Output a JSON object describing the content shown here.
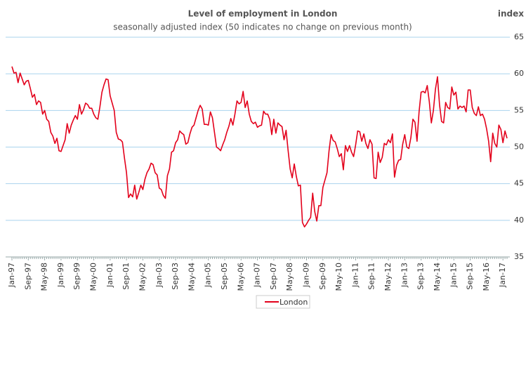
{
  "chart_data": {
    "type": "line",
    "title": "Level of employment in London",
    "subtitle": "seasonally adjusted index (50 indicates no change on previous month)",
    "y_axis_label": "index",
    "ylim": [
      35,
      65
    ],
    "yticks": [
      35,
      40,
      45,
      50,
      55,
      60,
      65
    ],
    "grid": true,
    "legend": "bottom",
    "categories": [
      "Jan-97",
      null,
      null,
      null,
      null,
      null,
      null,
      null,
      "Sep-97",
      null,
      null,
      null,
      null,
      null,
      null,
      null,
      "May-98",
      null,
      null,
      null,
      null,
      null,
      null,
      null,
      "Jan-99",
      null,
      null,
      null,
      null,
      null,
      null,
      null,
      "Sep-99",
      null,
      null,
      null,
      null,
      null,
      null,
      null,
      "May-00",
      null,
      null,
      null,
      null,
      null,
      null,
      null,
      "Jan-01",
      null,
      null,
      null,
      null,
      null,
      null,
      null,
      "Sep-01",
      null,
      null,
      null,
      null,
      null,
      null,
      null,
      "May-02",
      null,
      null,
      null,
      null,
      null,
      null,
      null,
      "Jan-03",
      null,
      null,
      null,
      null,
      null,
      null,
      null,
      "Sep-03",
      null,
      null,
      null,
      null,
      null,
      null,
      null,
      "May-04",
      null,
      null,
      null,
      null,
      null,
      null,
      null,
      "Jan-05",
      null,
      null,
      null,
      null,
      null,
      null,
      null,
      "Sep-05",
      null,
      null,
      null,
      null,
      null,
      null,
      null,
      "May-06",
      null,
      null,
      null,
      null,
      null,
      null,
      null,
      "Jan-07",
      null,
      null,
      null,
      null,
      null,
      null,
      null,
      "Sep-07",
      null,
      null,
      null,
      null,
      null,
      null,
      null,
      "May-08",
      null,
      null,
      null,
      null,
      null,
      null,
      null,
      "Jan-09",
      null,
      null,
      null,
      null,
      null,
      null,
      null,
      "Sep-09",
      null,
      null,
      null,
      null,
      null,
      null,
      null,
      "May-10",
      null,
      null,
      null,
      null,
      null,
      null,
      null,
      "Jan-11",
      null,
      null,
      null,
      null,
      null,
      null,
      null,
      "Sep-11",
      null,
      null,
      null,
      null,
      null,
      null,
      null,
      "May-12",
      null,
      null,
      null,
      null,
      null,
      null,
      null,
      "Jan-13",
      null,
      null,
      null,
      null,
      null,
      null,
      null,
      "Sep-13",
      null,
      null,
      null,
      null,
      null,
      null,
      null,
      "May-14",
      null,
      null,
      null,
      null,
      null,
      null,
      null,
      "Jan-15",
      null,
      null,
      null,
      null,
      null,
      null,
      null,
      "Sep-15",
      null,
      null,
      null,
      null,
      null,
      null,
      null,
      "May-16",
      null,
      null,
      null,
      null,
      null,
      null,
      null,
      "Jan-17",
      null,
      null
    ],
    "series": [
      {
        "name": "London",
        "color": "#e3001b",
        "values": [
          61.0,
          60.1,
          60.2,
          58.8,
          60.1,
          59.3,
          58.5,
          59.0,
          59.1,
          58.0,
          56.8,
          57.2,
          55.8,
          56.3,
          56.1,
          54.5,
          55.0,
          53.8,
          53.5,
          52.0,
          51.5,
          50.5,
          51.2,
          49.5,
          49.4,
          50.2,
          51.0,
          53.2,
          51.9,
          53.0,
          53.7,
          54.3,
          53.8,
          55.8,
          54.5,
          55.1,
          56.0,
          55.8,
          55.3,
          55.3,
          54.5,
          54.0,
          53.8,
          55.5,
          57.5,
          58.5,
          59.3,
          59.2,
          57.0,
          56.0,
          55.0,
          52.0,
          51.1,
          51.0,
          50.7,
          48.5,
          46.5,
          43.1,
          43.6,
          43.2,
          44.8,
          42.9,
          43.8,
          44.8,
          44.2,
          45.6,
          46.5,
          47.0,
          47.8,
          47.6,
          46.5,
          46.2,
          44.4,
          44.2,
          43.4,
          43.0,
          46.1,
          47.0,
          49.3,
          49.5,
          50.6,
          51.0,
          52.2,
          51.9,
          51.7,
          50.4,
          50.6,
          51.8,
          52.7,
          53.0,
          54.0,
          55.0,
          55.7,
          55.2,
          53.1,
          53.1,
          53.0,
          54.8,
          54.0,
          52.0,
          50.0,
          49.8,
          49.5,
          50.3,
          51.0,
          52.0,
          52.8,
          53.9,
          53.0,
          54.5,
          56.3,
          55.9,
          56.1,
          57.6,
          55.4,
          56.3,
          54.5,
          53.5,
          53.2,
          53.4,
          52.7,
          52.9,
          53.0,
          54.9,
          54.5,
          54.5,
          53.8,
          51.7,
          53.8,
          51.9,
          53.3,
          53.0,
          52.8,
          51.0,
          52.3,
          49.5,
          47.0,
          45.8,
          47.7,
          46.0,
          44.7,
          44.8,
          39.7,
          39.1,
          39.5,
          40.0,
          40.4,
          43.7,
          41.2,
          39.9,
          42.0,
          42.0,
          44.5,
          45.5,
          46.5,
          49.5,
          51.7,
          50.9,
          50.7,
          49.8,
          48.7,
          49.1,
          46.9,
          50.2,
          49.4,
          50.2,
          49.3,
          48.7,
          50.3,
          52.2,
          52.1,
          50.8,
          51.8,
          50.5,
          49.8,
          51.0,
          50.4,
          45.8,
          45.7,
          49.3,
          47.9,
          48.6,
          50.5,
          50.3,
          51.0,
          50.6,
          51.8,
          45.9,
          47.5,
          48.2,
          48.3,
          50.4,
          51.7,
          50.0,
          49.8,
          51.3,
          53.8,
          53.4,
          50.8,
          54.8,
          57.5,
          57.6,
          57.4,
          58.4,
          56.2,
          53.3,
          55.0,
          57.9,
          59.6,
          55.8,
          53.5,
          53.3,
          56.1,
          55.4,
          55.2,
          58.2,
          57.1,
          57.5,
          55.2,
          55.6,
          55.4,
          55.6,
          54.8,
          57.8,
          57.8,
          55.4,
          54.6,
          54.3,
          55.5,
          54.3,
          54.5,
          53.8,
          52.5,
          50.8,
          48.0,
          51.9,
          50.5,
          50.0,
          53.0,
          52.4,
          50.6,
          52.2,
          51.2
        ]
      }
    ]
  }
}
